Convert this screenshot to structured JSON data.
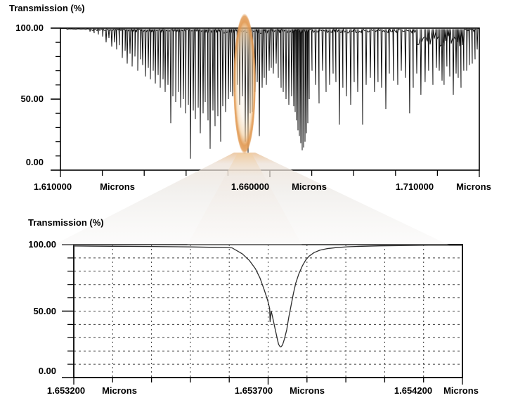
{
  "page": {
    "background": "#ffffff"
  },
  "annotation": {
    "type": "zoom-highlight",
    "center_micron": 1.65396,
    "ellipse_color": "#E29B55",
    "ellipse_inner_color": "#F7E2C4",
    "beam_warm_color": "#ECC49B",
    "beam_gray_color": "#E9E6E2",
    "links": "full-spectrum region magnified into zoom-spectrum chart"
  },
  "chart_data": [
    {
      "id": "full-spectrum",
      "type": "line",
      "title": "Transmission (%)",
      "xlabel_unit": "Microns",
      "x_tick_labels": [
        "1.610000",
        "1.660000",
        "1.710000"
      ],
      "y_tick_labels": [
        "100.00",
        "50.00",
        "0.00"
      ],
      "xlim": [
        1.61,
        1.71
      ],
      "ylim": [
        0,
        100
      ],
      "x_divisions": 10,
      "y_divisions": 10,
      "grid": false,
      "line_color": "#101010",
      "baseline_transmission": 99.6,
      "noise_regions": [
        [
          1.61,
          1.617,
          0.5
        ],
        [
          1.617,
          1.626,
          1.5
        ],
        [
          1.626,
          1.642,
          2.5
        ],
        [
          1.642,
          1.67,
          3.5
        ],
        [
          1.67,
          1.695,
          3.0
        ],
        [
          1.695,
          1.7065,
          13.0
        ],
        [
          1.7065,
          1.71,
          2.0
        ]
      ],
      "absorption_lines": [
        [
          1.61705,
          97.5
        ],
        [
          1.61805,
          96.5
        ],
        [
          1.61906,
          95.5
        ],
        [
          1.62007,
          94
        ],
        [
          1.62091,
          90
        ],
        [
          1.62158,
          93
        ],
        [
          1.62225,
          87
        ],
        [
          1.62292,
          90
        ],
        [
          1.62342,
          85
        ],
        [
          1.62409,
          88
        ],
        [
          1.62477,
          79
        ],
        [
          1.62544,
          84
        ],
        [
          1.62594,
          75
        ],
        [
          1.62661,
          82
        ],
        [
          1.62712,
          73
        ],
        [
          1.62779,
          80
        ],
        [
          1.62846,
          70
        ],
        [
          1.62913,
          78
        ],
        [
          1.62963,
          74
        ],
        [
          1.6303,
          66
        ],
        [
          1.63097,
          72
        ],
        [
          1.63148,
          64
        ],
        [
          1.63215,
          70
        ],
        [
          1.63265,
          61
        ],
        [
          1.63332,
          67
        ],
        [
          1.63383,
          58
        ],
        [
          1.6345,
          64
        ],
        [
          1.635,
          55
        ],
        [
          1.63567,
          60
        ],
        [
          1.63634,
          33
        ],
        [
          1.63685,
          52
        ],
        [
          1.63752,
          48
        ],
        [
          1.63819,
          55
        ],
        [
          1.63869,
          44
        ],
        [
          1.63936,
          50
        ],
        [
          1.63987,
          40
        ],
        [
          1.64054,
          46
        ],
        [
          1.64104,
          8
        ],
        [
          1.64171,
          42
        ],
        [
          1.64221,
          36
        ],
        [
          1.64289,
          44
        ],
        [
          1.64339,
          26
        ],
        [
          1.64406,
          40
        ],
        [
          1.64456,
          48
        ],
        [
          1.64523,
          35
        ],
        [
          1.64574,
          15
        ],
        [
          1.64641,
          42
        ],
        [
          1.64691,
          31
        ],
        [
          1.64758,
          38
        ],
        [
          1.64825,
          20
        ],
        [
          1.64876,
          45
        ],
        [
          1.64943,
          41
        ],
        [
          1.6501,
          50
        ],
        [
          1.6506,
          55
        ],
        [
          1.6511,
          52
        ],
        [
          1.65161,
          55
        ],
        [
          1.65228,
          60
        ],
        [
          1.65278,
          46
        ],
        [
          1.65345,
          52
        ],
        [
          1.65412,
          20
        ],
        [
          1.6548,
          12
        ],
        [
          1.6553,
          40
        ],
        [
          1.6558,
          41
        ],
        [
          1.65647,
          55
        ],
        [
          1.65698,
          62
        ],
        [
          1.65748,
          24
        ],
        [
          1.65815,
          58
        ],
        [
          1.65865,
          65
        ],
        [
          1.65916,
          60
        ],
        [
          1.65983,
          70
        ],
        [
          1.66033,
          72
        ],
        [
          1.66083,
          68
        ],
        [
          1.66151,
          75
        ],
        [
          1.66201,
          65
        ],
        [
          1.66268,
          58
        ],
        [
          1.66318,
          55
        ],
        [
          1.66386,
          50
        ],
        [
          1.66453,
          46
        ],
        [
          1.6652,
          52
        ],
        [
          1.6657,
          45
        ],
        [
          1.66604,
          41
        ],
        [
          1.66637,
          35
        ],
        [
          1.66671,
          28
        ],
        [
          1.66704,
          24
        ],
        [
          1.66738,
          19
        ],
        [
          1.66771,
          14
        ],
        [
          1.66805,
          16
        ],
        [
          1.66839,
          20
        ],
        [
          1.66872,
          26
        ],
        [
          1.66906,
          33
        ],
        [
          1.66939,
          50
        ],
        [
          1.67006,
          70
        ],
        [
          1.6709,
          60
        ],
        [
          1.67174,
          47
        ],
        [
          1.67258,
          70
        ],
        [
          1.67342,
          55
        ],
        [
          1.67426,
          60
        ],
        [
          1.6751,
          68
        ],
        [
          1.67577,
          62
        ],
        [
          1.6766,
          32
        ],
        [
          1.67744,
          58
        ],
        [
          1.67828,
          52
        ],
        [
          1.67929,
          46
        ],
        [
          1.68013,
          62
        ],
        [
          1.68097,
          55
        ],
        [
          1.68214,
          32
        ],
        [
          1.68298,
          60
        ],
        [
          1.68399,
          65
        ],
        [
          1.68499,
          55
        ],
        [
          1.68583,
          62
        ],
        [
          1.68667,
          58
        ],
        [
          1.68768,
          43
        ],
        [
          1.68852,
          68
        ],
        [
          1.68952,
          63
        ],
        [
          1.69053,
          60
        ],
        [
          1.69137,
          70
        ],
        [
          1.69237,
          65
        ],
        [
          1.69338,
          40
        ],
        [
          1.69422,
          58
        ],
        [
          1.69506,
          68
        ],
        [
          1.69606,
          53
        ],
        [
          1.69707,
          62
        ],
        [
          1.69791,
          70
        ],
        [
          1.69892,
          60
        ],
        [
          1.69976,
          72
        ],
        [
          1.70043,
          70
        ],
        [
          1.7011,
          63
        ],
        [
          1.7016,
          60
        ],
        [
          1.70227,
          73
        ],
        [
          1.70295,
          66
        ],
        [
          1.70379,
          53
        ],
        [
          1.70446,
          68
        ],
        [
          1.70496,
          65
        ],
        [
          1.70563,
          58
        ],
        [
          1.7063,
          70
        ],
        [
          1.70698,
          70
        ],
        [
          1.70765,
          74
        ],
        [
          1.70832,
          75
        ],
        [
          1.70899,
          78
        ],
        [
          1.7095,
          85
        ]
      ]
    },
    {
      "id": "zoom-spectrum",
      "type": "line",
      "title": "Transmission (%)",
      "xlabel_unit": "Microns",
      "x_tick_labels": [
        "1.653200",
        "1.653700",
        "1.654200"
      ],
      "y_tick_labels": [
        "100.00",
        "50.00",
        "0.00"
      ],
      "xlim": [
        1.6532,
        1.6542
      ],
      "ylim": [
        0,
        100
      ],
      "x_divisions": 10,
      "y_divisions": 10,
      "grid": true,
      "grid_style": "dashed",
      "line_color": "#2e2e2e",
      "dip_center_micron": 1.653733,
      "dip_min_transmission": 23,
      "points": [
        [
          1.6532,
          99.0
        ],
        [
          1.6533,
          98.8
        ],
        [
          1.6534,
          98.6
        ],
        [
          1.6535,
          98.3
        ],
        [
          1.65356,
          98.0
        ],
        [
          1.653607,
          97.6
        ],
        [
          1.653634,
          93.0
        ],
        [
          1.653652,
          88.0
        ],
        [
          1.653667,
          82.0
        ],
        [
          1.653679,
          75.0
        ],
        [
          1.65369,
          66.0
        ],
        [
          1.653699,
          58.0
        ],
        [
          1.653704,
          52.0
        ],
        [
          1.653705,
          42.0
        ],
        [
          1.653708,
          50.0
        ],
        [
          1.653712,
          45.0
        ],
        [
          1.653717,
          38.0
        ],
        [
          1.653723,
          30.0
        ],
        [
          1.653727,
          25.0
        ],
        [
          1.653731,
          23.2
        ],
        [
          1.653733,
          23.0
        ],
        [
          1.653737,
          24.5
        ],
        [
          1.653742,
          29.0
        ],
        [
          1.653748,
          36.0
        ],
        [
          1.653753,
          45.0
        ],
        [
          1.653759,
          54.0
        ],
        [
          1.653765,
          63.0
        ],
        [
          1.653771,
          71.0
        ],
        [
          1.653779,
          78.0
        ],
        [
          1.653788,
          84.0
        ],
        [
          1.653797,
          88.5
        ],
        [
          1.653806,
          91.5
        ],
        [
          1.653818,
          94.0
        ],
        [
          1.653833,
          95.8
        ],
        [
          1.653851,
          97.0
        ],
        [
          1.653875,
          97.8
        ],
        [
          1.653905,
          98.4
        ],
        [
          1.653941,
          98.8
        ],
        [
          1.653987,
          99.1
        ],
        [
          1.654041,
          99.3
        ],
        [
          1.654113,
          99.5
        ],
        [
          1.6542,
          99.6
        ]
      ]
    }
  ]
}
